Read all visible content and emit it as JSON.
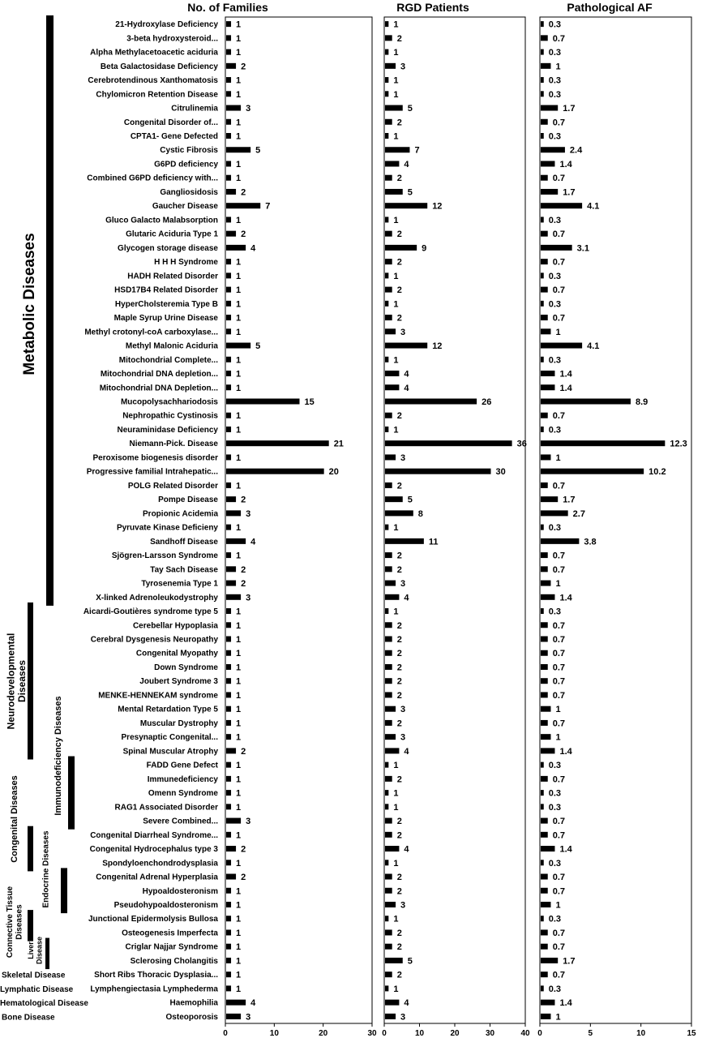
{
  "chart_data": {
    "type": "bar",
    "orientation": "horizontal",
    "categories": [
      "21-Hydroxylase Deficiency",
      "3-beta hydroxysteroid...",
      "Alpha Methylacetoacetic aciduria",
      "Beta Galactosidase Deficiency",
      "Cerebrotendinous Xanthomatosis",
      "Chylomicron Retention Disease",
      "Citrulinemia",
      "Congenital Disorder of...",
      "CPTA1- Gene Defected",
      "Cystic Fibrosis",
      "G6PD deficiency",
      "Combined G6PD deficiency with...",
      "Gangliosidosis",
      "Gaucher Disease",
      "Gluco Galacto Malabsorption",
      "Glutaric Aciduria Type 1",
      "Glycogen storage disease",
      "H H H Syndrome",
      "HADH Related Disorder",
      "HSD17B4 Related Disorder",
      "HyperCholsteremia Type B",
      "Maple Syrup Urine Disease",
      "Methyl crotonyl-coA carboxylase...",
      "Methyl Malonic Aciduria",
      "Mitochondrial Complete...",
      "Mitochondrial DNA depletion...",
      "Mitochondrial DNA Depletion...",
      "Mucopolysachhariodosis",
      "Nephropathic Cystinosis",
      "Neuraminidase Deficiency",
      "Niemann-Pick. Disease",
      "Peroxisome biogenesis disorder",
      "Progressive familial Intrahepatic...",
      "POLG Related Disorder",
      "Pompe Disease",
      "Propionic Acidemia",
      "Pyruvate Kinase Deficieny",
      "Sandhoff Disease",
      "Sjögren-Larsson Syndrome",
      "Tay Sach Disease",
      "Tyrosenemia Type 1",
      "X-linked Adrenoleukodystrophy",
      "Aicardi-Goutières syndrome type 5",
      "Cerebellar Hypoplasia",
      "Cerebral Dysgenesis Neuropathy",
      "Congenital Myopathy",
      "Down Syndrome",
      "Joubert Syndrome 3",
      "MENKE-HENNEKAM syndrome",
      "Mental Retardation Type 5",
      "Muscular Dystrophy",
      "Presynaptic Congenital...",
      "Spinal Muscular Atrophy",
      "FADD Gene Defect",
      "Immunedeficiency",
      "Omenn Syndrome",
      "RAG1 Associated Disorder",
      "Severe Combined...",
      "Congenital Diarrheal Syndrome...",
      "Congenital Hydrocephalus type 3",
      "Spondyloenchondrodysplasia",
      "Congenital Adrenal Hyperplasia",
      "Hypoaldosteronism",
      "Pseudohypoaldosteronism",
      "Junctional Epidermolysis Bullosa",
      "Osteogenesis Imperfecta",
      "Criglar Najjar Syndrome",
      "Sclerosing Cholangitis",
      "Short Ribs Thoracic Dysplasia...",
      "Lymphengiectasia Lymphederma",
      "Haemophilia",
      "Osteoporosis"
    ],
    "panels": [
      {
        "title": "No. of Families",
        "xlim": [
          0,
          30
        ],
        "ticks": [
          0,
          10,
          20,
          30
        ],
        "values": [
          1,
          1,
          1,
          2,
          1,
          1,
          3,
          1,
          1,
          5,
          1,
          1,
          2,
          7,
          1,
          2,
          4,
          1,
          1,
          1,
          1,
          1,
          1,
          5,
          1,
          1,
          1,
          15,
          1,
          1,
          21,
          1,
          20,
          1,
          2,
          3,
          1,
          4,
          1,
          2,
          2,
          3,
          1,
          1,
          1,
          1,
          1,
          1,
          1,
          1,
          1,
          1,
          2,
          1,
          1,
          1,
          1,
          3,
          1,
          2,
          1,
          2,
          1,
          1,
          1,
          1,
          1,
          1,
          1,
          1,
          4,
          3
        ],
        "labels": [
          "1",
          "1",
          "1",
          "2",
          "1",
          "1",
          "3",
          "1",
          "1",
          "5",
          "1",
          "1",
          "2",
          "7",
          "1",
          "2",
          "4",
          "1",
          "1",
          "1",
          "1",
          "1",
          "1",
          "5",
          "1",
          "1",
          "1",
          "15",
          "1",
          "1",
          "21",
          "1",
          "20",
          "1",
          "2",
          "3",
          "1",
          "4",
          "1",
          "2",
          "2",
          "3",
          "1",
          "1",
          "1",
          "1",
          "1",
          "1",
          "1",
          "1",
          "1",
          "1",
          "2",
          "1",
          "1",
          "1",
          "1",
          "3",
          "1",
          "2",
          "1",
          "2",
          "1",
          "1",
          "1",
          "1",
          "1",
          "1",
          "1",
          "1",
          "4",
          "3"
        ]
      },
      {
        "title": "RGD  Patients",
        "xlim": [
          0,
          40
        ],
        "ticks": [
          0,
          10,
          20,
          30,
          40
        ],
        "values": [
          1,
          2,
          1,
          3,
          1,
          1,
          5,
          2,
          1,
          7,
          4,
          2,
          5,
          12,
          1,
          2,
          9,
          2,
          1,
          2,
          1,
          2,
          3,
          12,
          1,
          4,
          4,
          26,
          2,
          1,
          36,
          3,
          30,
          2,
          5,
          8,
          1,
          11,
          2,
          2,
          3,
          4,
          1,
          2,
          2,
          2,
          2,
          2,
          2,
          3,
          2,
          3,
          4,
          1,
          2,
          1,
          1,
          2,
          2,
          4,
          1,
          2,
          2,
          3,
          1,
          2,
          2,
          5,
          2,
          1,
          4,
          3
        ],
        "labels": [
          "1",
          "2",
          "1",
          "3",
          "1",
          "1",
          "5",
          "2",
          "1",
          "7",
          "4",
          "2",
          "5",
          "12",
          "1",
          "2",
          "9",
          "2",
          "1",
          "2",
          "1",
          "2",
          "3",
          "12",
          "1",
          "4",
          "4",
          "26",
          "2",
          "1",
          "36",
          "3",
          "30",
          "2",
          "5",
          "8",
          "1",
          "11",
          "2",
          "2",
          "3",
          "4",
          "1",
          "2",
          "2",
          "2",
          "2",
          "2",
          "2",
          "3",
          "2",
          "3",
          "4",
          "1",
          "2",
          "1",
          "1",
          "2",
          "2",
          "4",
          "1",
          "2",
          "2",
          "3",
          "1",
          "2",
          "2",
          "5",
          "2",
          "1",
          "4",
          "3"
        ]
      },
      {
        "title": "Pathological AF",
        "xlim": [
          0,
          15
        ],
        "ticks": [
          0,
          5,
          10,
          15
        ],
        "values": [
          0.3,
          0.7,
          0.3,
          1,
          0.3,
          0.3,
          1.7,
          0.7,
          0.3,
          2.4,
          1.4,
          0.7,
          1.7,
          4.1,
          0.3,
          0.7,
          3.1,
          0.7,
          0.3,
          0.7,
          0.3,
          0.7,
          1,
          4.1,
          0.3,
          1.4,
          1.4,
          8.9,
          0.7,
          0.3,
          12.3,
          1,
          10.2,
          0.7,
          1.7,
          2.7,
          0.3,
          3.8,
          0.7,
          0.7,
          1,
          1.4,
          0.3,
          0.7,
          0.7,
          0.7,
          0.7,
          0.7,
          0.7,
          1,
          0.7,
          1,
          1.4,
          0.3,
          0.7,
          0.3,
          0.3,
          0.7,
          0.7,
          1.4,
          0.3,
          0.7,
          0.7,
          1,
          0.3,
          0.7,
          0.7,
          1.7,
          0.7,
          0.3,
          1.4,
          1
        ],
        "labels": [
          "0.3",
          "0.7",
          "0.3",
          "1",
          "0.3",
          "0.3",
          "1.7",
          "0.7",
          "0.3",
          "2.4",
          "1.4",
          "0.7",
          "1.7",
          "4.1",
          "0.3",
          "0.7",
          "3.1",
          "0.7",
          "0.3",
          "0.7",
          "0.3",
          "0.7",
          "1",
          "4.1",
          "0.3",
          "1.4",
          "1.4",
          "8.9",
          "0.7",
          "0.3",
          "12.3",
          "1",
          "10.2",
          "0.7",
          "1.7",
          "2.7",
          "0.3",
          "3.8",
          "0.7",
          "0.7",
          "1",
          "1.4",
          "0.3",
          "0.7",
          "0.7",
          "0.7",
          "0.7",
          "0.7",
          "0.7",
          "1",
          "0.7",
          "1",
          "1.4",
          "0.3",
          "0.7",
          "0.3",
          "0.3",
          "0.7",
          "0.7",
          "1.4",
          "0.3",
          "0.7",
          "0.7",
          "1",
          "0.3",
          "0.7",
          "0.7",
          "1.7",
          "0.7",
          "0.3",
          "1.4",
          "1"
        ]
      }
    ],
    "groups": [
      {
        "name": "Metabolic Diseases",
        "from": 0,
        "to": 41,
        "label_lines": [
          "Metabolic Diseases"
        ]
      },
      {
        "name": "Neurodevelopmental Diseases",
        "from": 42,
        "to": 52,
        "label_lines": [
          "Neurodevelopmental",
          "Diseases"
        ]
      },
      {
        "name": "Immunodeficiency Diseases",
        "from": 53,
        "to": 57,
        "label_lines": [
          "Immunodeficiency Diseases"
        ]
      },
      {
        "name": "Congenital Diseases",
        "from": 58,
        "to": 60,
        "label_lines": [
          "Congenital Diseases"
        ]
      },
      {
        "name": "Endocrine Diseases",
        "from": 61,
        "to": 63,
        "label_lines": [
          "Endocrine Diseases"
        ]
      },
      {
        "name": "Connective Tissue Diseases",
        "from": 64,
        "to": 65,
        "label_lines": [
          "Connective Tissue",
          "Diseases"
        ]
      },
      {
        "name": "Liver Disease",
        "from": 66,
        "to": 67,
        "label_lines": [
          "Liver",
          "Disease"
        ]
      },
      {
        "name": "Skeletal Disease",
        "row": 68
      },
      {
        "name": "Lymphatic Disease",
        "row": 69
      },
      {
        "name": "Hematological Disease",
        "row": 70
      },
      {
        "name": "Bone Disease",
        "row": 71
      }
    ]
  }
}
